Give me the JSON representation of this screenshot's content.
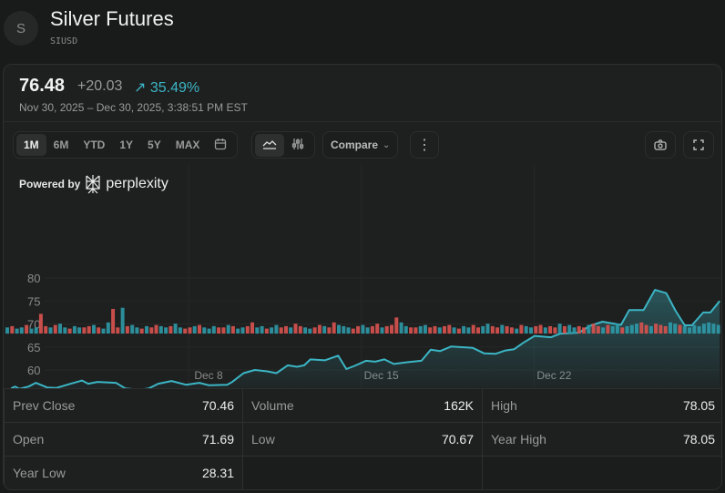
{
  "header": {
    "avatar_letter": "S",
    "title": "Silver Futures",
    "ticker": "SIUSD"
  },
  "quote": {
    "price": "76.48",
    "change": "+20.03",
    "percent": "35.49%",
    "direction_icon": "arrow-up-right-icon",
    "range": "Nov 30, 2025 – Dec 30, 2025, 3:38:51 PM EST"
  },
  "colors": {
    "accent": "#3bb5c4",
    "up": "#2f9aa8",
    "down": "#d9534f"
  },
  "toolbar": {
    "ranges": [
      {
        "label": "1M",
        "active": true
      },
      {
        "label": "6M"
      },
      {
        "label": "YTD"
      },
      {
        "label": "1Y"
      },
      {
        "label": "5Y"
      },
      {
        "label": "MAX"
      }
    ],
    "compare_label": "Compare"
  },
  "branding": {
    "powered_by": "Powered by",
    "brand": "perplexity"
  },
  "chart_data": {
    "type": "area",
    "ylim": [
      55,
      82
    ],
    "yticks": [
      60,
      65,
      70,
      75,
      80
    ],
    "xticks": [
      {
        "label": "Dec 8",
        "t": "2025-12-08T00:00"
      },
      {
        "label": "Dec 15",
        "t": "2025-12-15T00:00"
      },
      {
        "label": "Dec 22",
        "t": "2025-12-22T00:00"
      }
    ],
    "baseline": 56.45,
    "grid": true,
    "points": [
      [
        "2025-11-30T00:00",
        56.0
      ],
      [
        "2025-11-30T04:00",
        56.4
      ],
      [
        "2025-11-30T08:00",
        55.9
      ],
      [
        "2025-11-30T17:00",
        56.4
      ],
      [
        "2025-12-01T00:00",
        57.2
      ],
      [
        "2025-12-01T11:00",
        56.2
      ],
      [
        "2025-12-01T20:00",
        56.1
      ],
      [
        "2025-12-02T10:00",
        57.0
      ],
      [
        "2025-12-02T21:00",
        57.7
      ],
      [
        "2025-12-03T03:00",
        57.0
      ],
      [
        "2025-12-03T12:00",
        57.4
      ],
      [
        "2025-12-04T06:00",
        57.2
      ],
      [
        "2025-12-04T15:00",
        56.0
      ],
      [
        "2025-12-05T05:00",
        55.7
      ],
      [
        "2025-12-05T14:00",
        56.0
      ],
      [
        "2025-12-05T23:00",
        57.0
      ],
      [
        "2025-12-06T12:00",
        57.6
      ],
      [
        "2025-12-07T02:00",
        56.8
      ],
      [
        "2025-12-07T15:00",
        57.2
      ],
      [
        "2025-12-08T00:00",
        56.7
      ],
      [
        "2025-12-08T18:00",
        56.8
      ],
      [
        "2025-12-08T23:00",
        57.4
      ],
      [
        "2025-12-09T10:00",
        59.3
      ],
      [
        "2025-12-09T21:00",
        60.0
      ],
      [
        "2025-12-10T09:00",
        59.7
      ],
      [
        "2025-12-10T18:00",
        59.3
      ],
      [
        "2025-12-11T05:00",
        61.0
      ],
      [
        "2025-12-11T14:00",
        60.7
      ],
      [
        "2025-12-11T21:00",
        61.0
      ],
      [
        "2025-12-12T03:00",
        62.3
      ],
      [
        "2025-12-12T17:00",
        62.1
      ],
      [
        "2025-12-13T06:00",
        63.1
      ],
      [
        "2025-12-13T14:00",
        60.2
      ],
      [
        "2025-12-13T22:00",
        60.9
      ],
      [
        "2025-12-14T09:00",
        62.0
      ],
      [
        "2025-12-14T18:00",
        61.8
      ],
      [
        "2025-12-15T03:00",
        62.3
      ],
      [
        "2025-12-15T12:00",
        61.3
      ],
      [
        "2025-12-16T02:00",
        61.7
      ],
      [
        "2025-12-16T15:00",
        62.0
      ],
      [
        "2025-12-17T00:00",
        64.4
      ],
      [
        "2025-12-17T09:00",
        64.1
      ],
      [
        "2025-12-17T20:00",
        65.1
      ],
      [
        "2025-12-18T17:00",
        64.8
      ],
      [
        "2025-12-19T04:00",
        63.6
      ],
      [
        "2025-12-19T15:00",
        63.5
      ],
      [
        "2025-12-20T00:00",
        64.2
      ],
      [
        "2025-12-20T09:00",
        64.5
      ],
      [
        "2025-12-20T18:00",
        65.9
      ],
      [
        "2025-12-21T05:00",
        67.4
      ],
      [
        "2025-12-21T21:00",
        67.1
      ],
      [
        "2025-12-22T06:00",
        67.9
      ],
      [
        "2025-12-23T00:00",
        68.1
      ],
      [
        "2025-12-23T11:00",
        69.6
      ],
      [
        "2025-12-23T23:00",
        70.5
      ],
      [
        "2025-12-24T17:00",
        69.8
      ],
      [
        "2025-12-25T01:00",
        73.0
      ],
      [
        "2025-12-25T15:00",
        73.0
      ],
      [
        "2025-12-26T02:00",
        77.4
      ],
      [
        "2025-12-26T13:00",
        76.7
      ],
      [
        "2025-12-26T22:00",
        72.9
      ],
      [
        "2025-12-27T07:00",
        69.7
      ],
      [
        "2025-12-27T14:00",
        69.7
      ],
      [
        "2025-12-28T01:00",
        72.5
      ],
      [
        "2025-12-28T08:00",
        72.5
      ],
      [
        "2025-12-28T17:00",
        75.0
      ]
    ],
    "volume": [
      5,
      6,
      4,
      5,
      7,
      4,
      5,
      16,
      6,
      5,
      7,
      8,
      5,
      4,
      6,
      5,
      5,
      6,
      7,
      5,
      4,
      9,
      20,
      5,
      21,
      6,
      7,
      5,
      4,
      6,
      5,
      7,
      6,
      5,
      6,
      8,
      5,
      4,
      5,
      6,
      7,
      5,
      4,
      6,
      5,
      5,
      7,
      6,
      4,
      5,
      6,
      9,
      5,
      6,
      4,
      5,
      7,
      5,
      6,
      5,
      8,
      6,
      5,
      4,
      5,
      7,
      6,
      5,
      9,
      7,
      6,
      5,
      4,
      6,
      7,
      5,
      6,
      8,
      5,
      6,
      7,
      13,
      9,
      6,
      5,
      5,
      6,
      7,
      5,
      6,
      5,
      6,
      7,
      5,
      4,
      6,
      5,
      7,
      5,
      6,
      8,
      6,
      5,
      7,
      6,
      5,
      4,
      7,
      6,
      5,
      6,
      7,
      5,
      6,
      5,
      8,
      6,
      7,
      5,
      6,
      5,
      7,
      8,
      6,
      5,
      7,
      6,
      8,
      5,
      6,
      7,
      8,
      9,
      7,
      6,
      8,
      7,
      6,
      9,
      8,
      7,
      6,
      5,
      7,
      6,
      8,
      9,
      8,
      7
    ],
    "volume_direction": "uduuduudduduuduudduduudduduududduuduudduduuudduduudduuduuddudduuddudduuudduudduddduudduuddudduduudduuddudduduuddudduduuddudduduuduuudduddduudu"
  },
  "stats": [
    [
      {
        "label": "Prev Close",
        "value": "70.46"
      },
      {
        "label": "Volume",
        "value": "162K"
      },
      {
        "label": "High",
        "value": "78.05"
      }
    ],
    [
      {
        "label": "Open",
        "value": "71.69"
      },
      {
        "label": "Low",
        "value": "70.67"
      },
      {
        "label": "Year High",
        "value": "78.05"
      }
    ],
    [
      {
        "label": "Year Low",
        "value": "28.31"
      }
    ]
  ]
}
